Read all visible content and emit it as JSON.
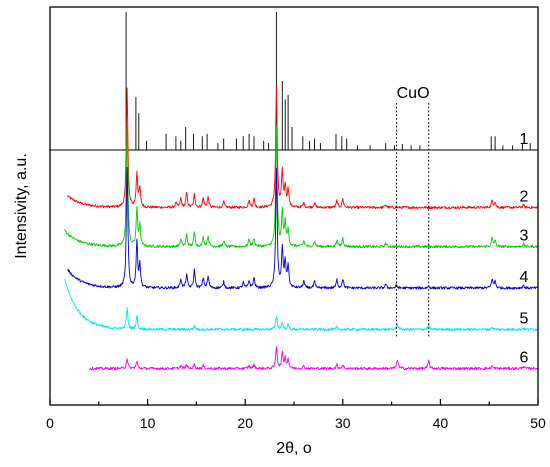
{
  "chart_data": {
    "type": "line",
    "title": "",
    "xlabel": "2θ, o",
    "ylabel": "Intensivity, a.u.",
    "xlim": [
      0,
      50
    ],
    "x_ticks": [
      0,
      10,
      20,
      30,
      40,
      50
    ],
    "y_ticks_shown": false,
    "grid": false,
    "legend": "none (traces labelled 1–6 at right end)",
    "series": [
      {
        "name": "1",
        "color": "#000000",
        "style": "stick pattern",
        "x_start": 0,
        "x_end": 50,
        "baseline": 0,
        "peaks": [
          [
            7.8,
            30
          ],
          [
            8.8,
            11.5
          ],
          [
            9.1,
            8
          ],
          [
            9.9,
            2
          ],
          [
            11.9,
            3.5
          ],
          [
            12.9,
            3
          ],
          [
            13.4,
            2
          ],
          [
            13.9,
            5
          ],
          [
            14.7,
            3.5
          ],
          [
            15.6,
            3
          ],
          [
            16.1,
            3.5
          ],
          [
            17.2,
            1.5
          ],
          [
            17.8,
            2.5
          ],
          [
            19.1,
            2.5
          ],
          [
            19.8,
            3
          ],
          [
            20.4,
            3.5
          ],
          [
            20.9,
            3
          ],
          [
            21.9,
            2
          ],
          [
            22.4,
            1.5
          ],
          [
            23.2,
            30
          ],
          [
            23.8,
            15
          ],
          [
            24.1,
            11
          ],
          [
            24.4,
            12
          ],
          [
            24.8,
            5
          ],
          [
            25.9,
            3
          ],
          [
            26.6,
            2
          ],
          [
            27.1,
            2.5
          ],
          [
            27.7,
            1.5
          ],
          [
            29.3,
            3.5
          ],
          [
            29.9,
            3
          ],
          [
            30.4,
            2.5
          ],
          [
            31.5,
            1
          ],
          [
            32.8,
            1
          ],
          [
            34.4,
            1.5
          ],
          [
            35.3,
            1
          ],
          [
            36.1,
            1.3
          ],
          [
            37.0,
            1
          ],
          [
            37.9,
            1
          ],
          [
            45.2,
            3
          ],
          [
            45.6,
            3
          ],
          [
            46.4,
            1
          ],
          [
            47.4,
            1
          ],
          [
            48.4,
            1.5
          ],
          [
            49.2,
            1.5
          ]
        ]
      },
      {
        "name": "2",
        "color": "#ff0000",
        "style": "profile",
        "x_start": 1.8,
        "x_end": 50,
        "baseline": -12.5,
        "rise_amp": 2.5,
        "peaks": [
          [
            7.9,
            26
          ],
          [
            8.9,
            7.5
          ],
          [
            9.2,
            4
          ],
          [
            12.9,
            1
          ],
          [
            13.4,
            2
          ],
          [
            14.0,
            3.2
          ],
          [
            14.8,
            2.8
          ],
          [
            15.7,
            2
          ],
          [
            16.2,
            2.2
          ],
          [
            17.8,
            1.2
          ],
          [
            20.4,
            1.5
          ],
          [
            20.9,
            1.8
          ],
          [
            23.2,
            26
          ],
          [
            23.8,
            7.5
          ],
          [
            24.1,
            4.5
          ],
          [
            24.4,
            4
          ],
          [
            26.0,
            1
          ],
          [
            27.1,
            1
          ],
          [
            29.4,
            1.5
          ],
          [
            30.0,
            1.8
          ],
          [
            34.4,
            0.6
          ],
          [
            45.3,
            1.5
          ],
          [
            45.6,
            1.2
          ],
          [
            48.5,
            0.6
          ]
        ]
      },
      {
        "name": "3",
        "color": "#00cc00",
        "style": "profile",
        "x_start": 1.5,
        "x_end": 50,
        "baseline": -21,
        "rise_amp": 3.5,
        "peaks": [
          [
            7.9,
            26
          ],
          [
            8.9,
            8
          ],
          [
            9.2,
            4.5
          ],
          [
            13.4,
            1.6
          ],
          [
            14.0,
            2.6
          ],
          [
            14.8,
            3.2
          ],
          [
            15.7,
            2
          ],
          [
            16.2,
            2.2
          ],
          [
            17.8,
            1.3
          ],
          [
            20.4,
            1.6
          ],
          [
            20.9,
            1.8
          ],
          [
            23.2,
            26
          ],
          [
            23.8,
            7.5
          ],
          [
            24.1,
            5
          ],
          [
            24.4,
            3.5
          ],
          [
            26.0,
            1.2
          ],
          [
            27.1,
            1.2
          ],
          [
            29.4,
            1.5
          ],
          [
            30.0,
            1.8
          ],
          [
            34.4,
            0.8
          ],
          [
            45.3,
            1.8
          ],
          [
            45.6,
            1.3
          ],
          [
            48.5,
            0.6
          ]
        ]
      },
      {
        "name": "4",
        "color": "#0000cc",
        "style": "profile",
        "x_start": 1.8,
        "x_end": 50,
        "baseline": -30,
        "rise_amp": 4,
        "peaks": [
          [
            7.9,
            26
          ],
          [
            8.9,
            10
          ],
          [
            9.2,
            5
          ],
          [
            13.4,
            2
          ],
          [
            14.0,
            3
          ],
          [
            14.8,
            4
          ],
          [
            15.7,
            2.2
          ],
          [
            16.2,
            2.5
          ],
          [
            17.8,
            1.3
          ],
          [
            19.8,
            1.2
          ],
          [
            20.4,
            1.6
          ],
          [
            20.9,
            2.2
          ],
          [
            23.2,
            26
          ],
          [
            23.8,
            8.5
          ],
          [
            24.1,
            5.5
          ],
          [
            24.4,
            5
          ],
          [
            26.0,
            1.5
          ],
          [
            27.1,
            1.3
          ],
          [
            29.4,
            1.8
          ],
          [
            30.0,
            2
          ],
          [
            34.4,
            0.8
          ],
          [
            35.5,
            0.6
          ],
          [
            38.8,
            0.4
          ],
          [
            45.3,
            2
          ],
          [
            45.6,
            1.5
          ],
          [
            48.5,
            0.6
          ]
        ]
      },
      {
        "name": "5",
        "color": "#00e5ee",
        "style": "profile",
        "x_start": 1.5,
        "x_end": 50,
        "baseline": -39,
        "rise_amp": 11,
        "peaks": [
          [
            7.9,
            4.5
          ],
          [
            8.9,
            3
          ],
          [
            14.8,
            0.7
          ],
          [
            23.2,
            3
          ],
          [
            23.8,
            1.5
          ],
          [
            24.4,
            1
          ],
          [
            29.4,
            0.5
          ],
          [
            35.6,
            1.3
          ],
          [
            38.8,
            1
          ],
          [
            45.3,
            0.5
          ],
          [
            48.5,
            0.3
          ]
        ]
      },
      {
        "name": "6",
        "color": "#ee00ee",
        "style": "profile",
        "x_start": 4,
        "x_end": 50,
        "baseline": -47.5,
        "rise_amp": 0,
        "peaks": [
          [
            7.9,
            2.2
          ],
          [
            8.9,
            1.6
          ],
          [
            13.4,
            0.6
          ],
          [
            14.0,
            0.8
          ],
          [
            14.8,
            0.9
          ],
          [
            15.7,
            0.6
          ],
          [
            20.4,
            0.6
          ],
          [
            20.9,
            0.8
          ],
          [
            23.2,
            4.8
          ],
          [
            23.8,
            3.2
          ],
          [
            24.1,
            2.2
          ],
          [
            24.4,
            2
          ],
          [
            26.0,
            0.5
          ],
          [
            29.4,
            0.8
          ],
          [
            30.0,
            0.7
          ],
          [
            35.6,
            2
          ],
          [
            38.8,
            1.7
          ],
          [
            45.3,
            0.6
          ],
          [
            48.5,
            0.5
          ]
        ]
      }
    ],
    "annotations": [
      {
        "text": "CuO",
        "x": 37.2
      }
    ],
    "reference_lines_x": [
      35.5,
      38.8
    ]
  }
}
